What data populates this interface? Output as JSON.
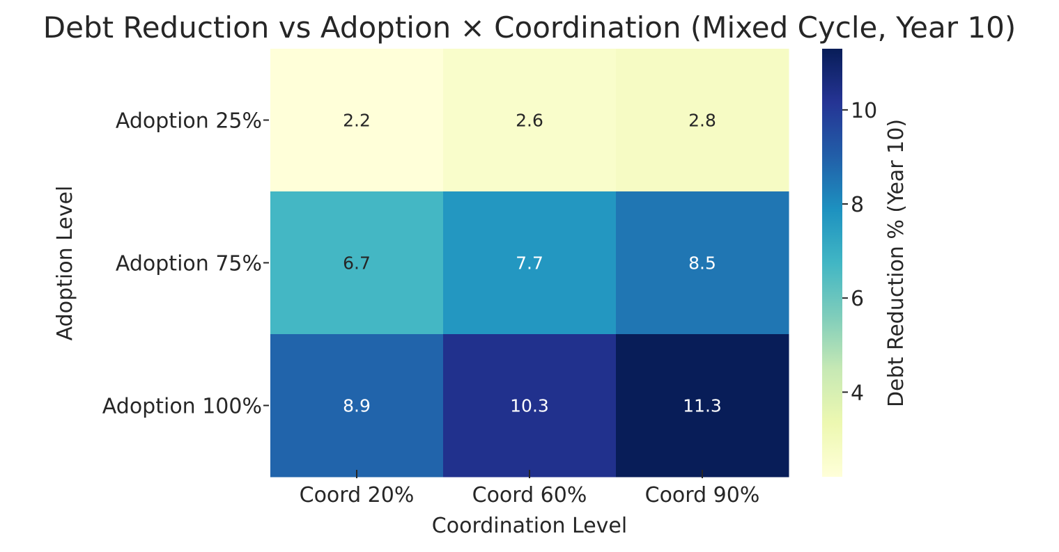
{
  "chart_data": {
    "type": "heatmap",
    "title": "Debt Reduction vs Adoption × Coordination (Mixed Cycle, Year 10)",
    "xlabel": "Coordination Level",
    "ylabel": "Adoption Level",
    "x_categories": [
      "Coord 20%",
      "Coord 60%",
      "Coord 90%"
    ],
    "y_categories": [
      "Adoption 25%",
      "Adoption 75%",
      "Adoption 100%"
    ],
    "values": [
      [
        2.2,
        2.6,
        2.8
      ],
      [
        6.7,
        7.7,
        8.5
      ],
      [
        8.9,
        10.3,
        11.3
      ]
    ],
    "colorbar": {
      "label": "Debt Reduction % (Year 10)",
      "ticks": [
        4,
        6,
        8,
        10
      ],
      "range": [
        2.2,
        11.3
      ],
      "colormap": "YlGnBu"
    }
  }
}
